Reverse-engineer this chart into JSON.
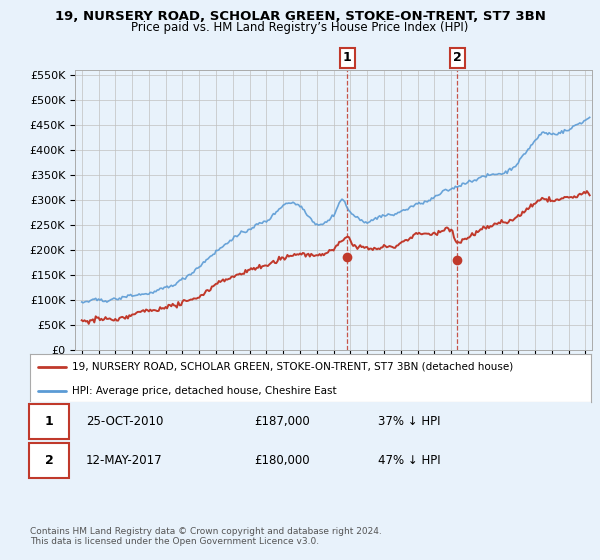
{
  "title": "19, NURSERY ROAD, SCHOLAR GREEN, STOKE-ON-TRENT, ST7 3BN",
  "subtitle": "Price paid vs. HM Land Registry’s House Price Index (HPI)",
  "ylim": [
    0,
    560000
  ],
  "yticks": [
    0,
    50000,
    100000,
    150000,
    200000,
    250000,
    300000,
    350000,
    400000,
    450000,
    500000,
    550000
  ],
  "ytick_labels": [
    "£0",
    "£50K",
    "£100K",
    "£150K",
    "£200K",
    "£250K",
    "£300K",
    "£350K",
    "£400K",
    "£450K",
    "£500K",
    "£550K"
  ],
  "xlim_start": 1994.6,
  "xlim_end": 2025.4,
  "hpi_color": "#5b9bd5",
  "price_color": "#c0392b",
  "marker1_x": 2010.82,
  "marker1_y": 187000,
  "marker2_x": 2017.37,
  "marker2_y": 180000,
  "annotation1_date": "25-OCT-2010",
  "annotation1_price": "£187,000",
  "annotation1_hpi": "37% ↓ HPI",
  "annotation2_date": "12-MAY-2017",
  "annotation2_price": "£180,000",
  "annotation2_hpi": "47% ↓ HPI",
  "legend_line1": "19, NURSERY ROAD, SCHOLAR GREEN, STOKE-ON-TRENT, ST7 3BN (detached house)",
  "legend_line2": "HPI: Average price, detached house, Cheshire East",
  "footer": "Contains HM Land Registry data © Crown copyright and database right 2024.\nThis data is licensed under the Open Government Licence v3.0.",
  "background_color": "#e8f2fb",
  "plot_bg_color": "#e8f2fb"
}
